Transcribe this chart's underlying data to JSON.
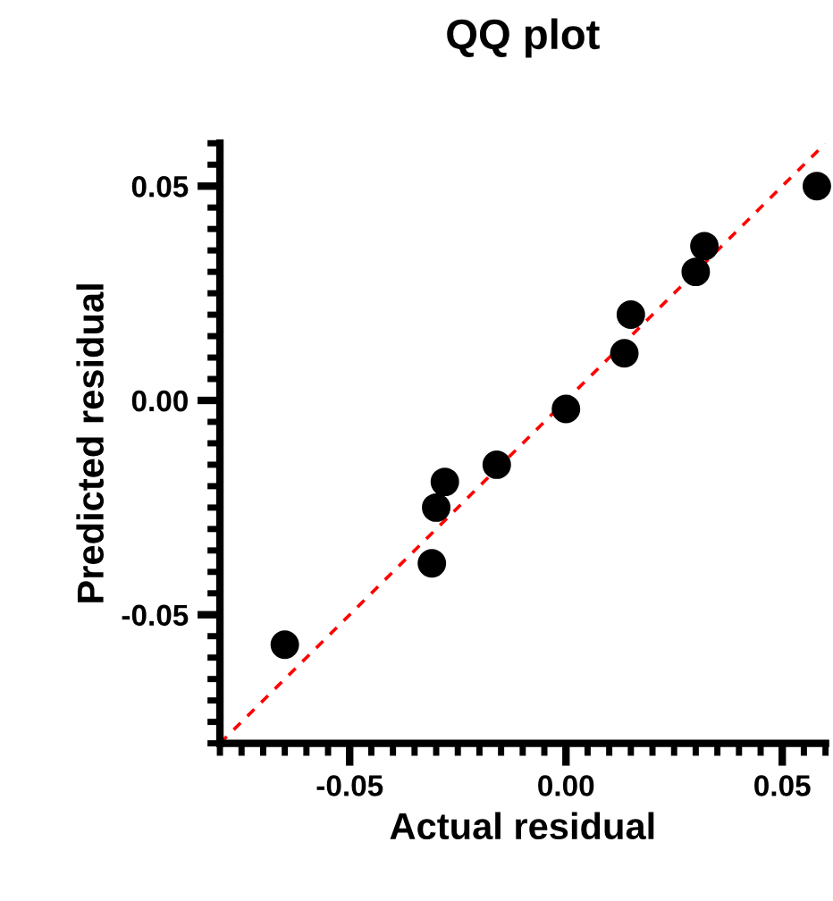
{
  "chart_data": {
    "type": "scatter",
    "title": "QQ plot",
    "xlabel": "Actual residual",
    "ylabel": "Predicted residual",
    "series": [
      {
        "color": "#000000",
        "marker": "circle",
        "x": [
          0.058,
          0.032,
          0.03,
          0.015,
          0.0135,
          0.0,
          -0.016,
          -0.028,
          -0.03,
          -0.031,
          -0.065
        ],
        "values": [
          0.05,
          0.036,
          0.03,
          0.02,
          0.011,
          -0.002,
          -0.015,
          -0.019,
          -0.025,
          -0.038,
          -0.057
        ]
      },
      {
        "type": "line",
        "color": "#ff0000",
        "line_style": "dashed",
        "marker": "none",
        "x": [
          -0.08,
          0.06
        ],
        "values": [
          -0.08,
          0.06
        ]
      }
    ],
    "xlim": [
      -0.08,
      0.06
    ],
    "ylim": [
      -0.08,
      0.06
    ],
    "xticks": [
      {
        "value": -0.05,
        "label": "-0.05"
      },
      {
        "value": 0.0,
        "label": "0.00"
      },
      {
        "value": 0.05,
        "label": "0.05"
      }
    ],
    "yticks": [
      {
        "value": -0.05,
        "label": "-0.05"
      },
      {
        "value": 0.0,
        "label": "0.00"
      },
      {
        "value": 0.05,
        "label": "0.05"
      }
    ],
    "grid": false
  }
}
